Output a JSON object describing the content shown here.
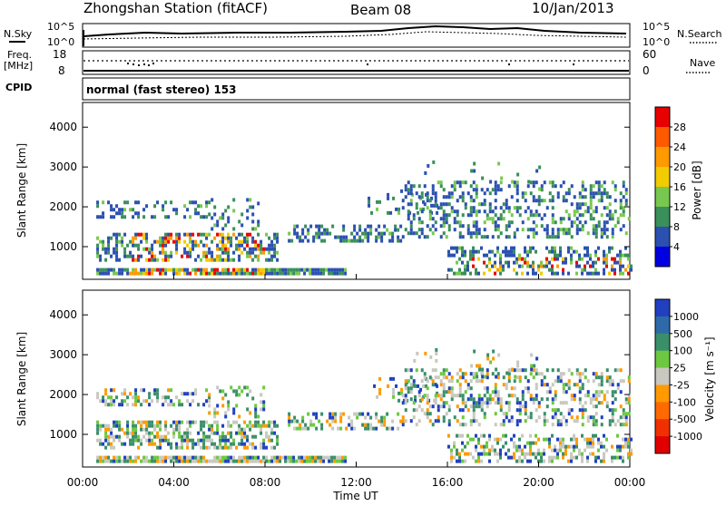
{
  "header": {
    "title": "Zhongshan Station (fitACF)",
    "beam": "Beam 08",
    "date": "10/Jan/2013"
  },
  "top_panels": {
    "nsky_label": "N.Sky",
    "nsearch_label": "N.Search",
    "count_ticks": [
      "10^5",
      "10^0"
    ],
    "freq_label_1": "Freq.",
    "freq_label_2": "[MHz]",
    "freq_ticks": [
      "18",
      "8"
    ],
    "nave_ticks": [
      "60",
      "0"
    ],
    "nave_label": "Nave",
    "cpid_label": "CPID",
    "cpid_text": "normal (fast stereo) 153"
  },
  "chart_data": [
    {
      "type": "heatmap",
      "title": "Power",
      "ylabel": "Slant Range [km]",
      "xlabel": "Time UT",
      "x_ticks": [
        "00:00",
        "04:00",
        "08:00",
        "12:00",
        "16:00",
        "20:00",
        "00:00"
      ],
      "y_ticks": [
        1000,
        2000,
        3000,
        4000
      ],
      "xlim_hours": [
        0,
        24
      ],
      "ylim_km": [
        180,
        4620
      ],
      "colorbar": {
        "label": "Power [dB]",
        "ticks": [
          "28",
          "24",
          "20",
          "16",
          "12",
          "8",
          "4"
        ],
        "colors": [
          "#e80000",
          "#ff5a00",
          "#ff9a00",
          "#f0cc00",
          "#78c850",
          "#3a8f5a",
          "#2b50b0",
          "#0000e0"
        ]
      }
    },
    {
      "type": "heatmap",
      "title": "Velocity",
      "ylabel": "Slant Range [km]",
      "xlabel": "Time UT",
      "x_ticks": [
        "00:00",
        "04:00",
        "08:00",
        "12:00",
        "16:00",
        "20:00",
        "00:00"
      ],
      "y_ticks": [
        1000,
        2000,
        3000,
        4000
      ],
      "xlim_hours": [
        0,
        24
      ],
      "ylim_km": [
        180,
        4620
      ],
      "colorbar": {
        "label": "Velocity [m s⁻¹]",
        "ticks": [
          "1000",
          "500",
          "100",
          "25",
          "-25",
          "-100",
          "-500",
          "-1000"
        ],
        "colors": [
          "#2040c0",
          "#2f6aa8",
          "#3a8f6a",
          "#6cc840",
          "#c8c8c0",
          "#ff9a00",
          "#ff6a00",
          "#f03000",
          "#e00000"
        ]
      }
    }
  ],
  "x_axis_label": "Time UT"
}
